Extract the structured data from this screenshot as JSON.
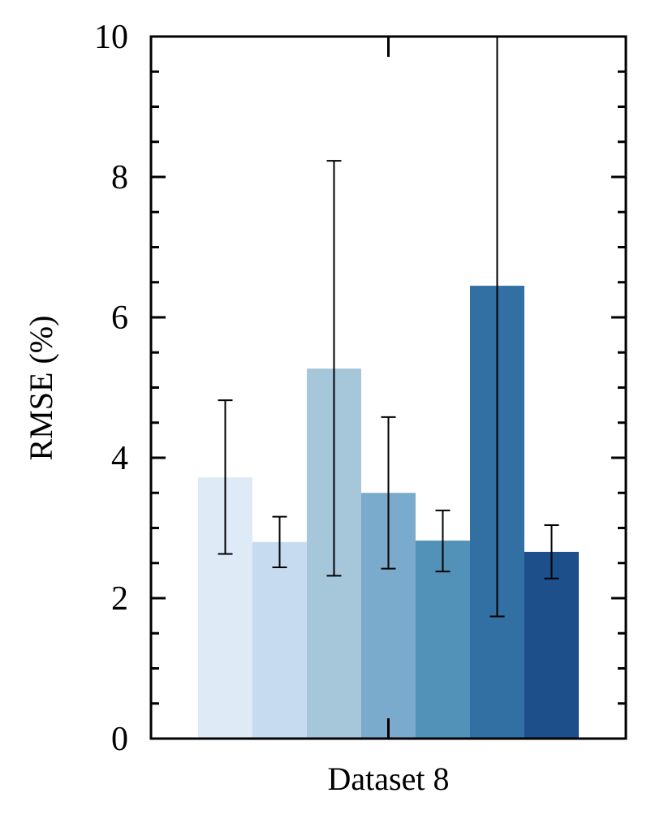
{
  "chart_data": {
    "type": "bar",
    "categories": [
      "Dataset 8"
    ],
    "xlabel": "Dataset 8",
    "ylabel": "RMSE (%)",
    "ylim": [
      0,
      10
    ],
    "yticks": [
      "0",
      "2",
      "4",
      "6",
      "8",
      "10"
    ],
    "y_minor_step": 0.5,
    "grid": false,
    "series": [
      {
        "value": 3.72,
        "err_low": 2.63,
        "err_high": 4.82,
        "color": "#deebf7"
      },
      {
        "value": 2.8,
        "err_low": 2.44,
        "err_high": 3.16,
        "color": "#c6dbef"
      },
      {
        "value": 5.27,
        "err_low": 2.32,
        "err_high": 8.23,
        "color": "#a6c6da"
      },
      {
        "value": 3.5,
        "err_low": 2.42,
        "err_high": 4.58,
        "color": "#7aabcc"
      },
      {
        "value": 2.82,
        "err_low": 2.38,
        "err_high": 3.25,
        "color": "#5291b8"
      },
      {
        "value": 6.45,
        "err_low": 1.74,
        "err_high": 11.2,
        "color": "#326fa3"
      },
      {
        "value": 2.66,
        "err_low": 2.28,
        "err_high": 3.04,
        "color": "#1d508a"
      }
    ]
  }
}
